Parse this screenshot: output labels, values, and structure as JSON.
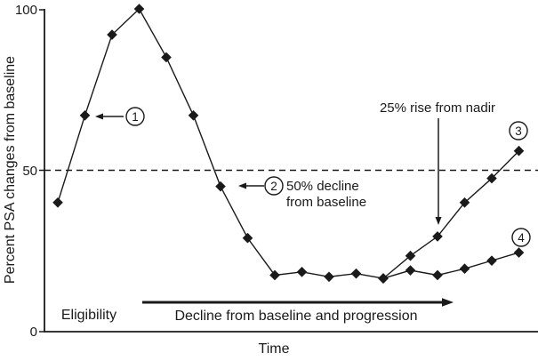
{
  "figure": {
    "background": "#ffffff",
    "ink_color": "#1a1a1a"
  },
  "chart_data": {
    "type": "line",
    "title": "",
    "xlabel": "Time",
    "ylabel": "Percent PSA changes from baseline",
    "ylim": [
      0,
      100
    ],
    "yticks": [
      0,
      50,
      100
    ],
    "ytick_labels": [
      "0",
      "50",
      "100"
    ],
    "xticks": "none",
    "grid": false,
    "marker_shape": "filled-diamond",
    "series": [
      {
        "name": "psa-response-course",
        "start_index": 0,
        "values": [
          40,
          67,
          92,
          100,
          85,
          67,
          45,
          29,
          17.5,
          18.5,
          17,
          18,
          16.5
        ]
      },
      {
        "name": "progression-branch",
        "start_index": 12,
        "values": [
          16.5,
          23.5,
          29.5,
          40,
          47.5,
          56
        ]
      },
      {
        "name": "stable-branch",
        "start_index": 12,
        "values": [
          16.5,
          19,
          17.5,
          19.5,
          22,
          24.5
        ]
      }
    ],
    "reference_line": {
      "value": 50,
      "style": "dashed"
    },
    "annotations": {
      "marker1": {
        "number": "1",
        "points_to": {
          "index": 1,
          "value": 67
        }
      },
      "marker2": {
        "number": "2",
        "points_to": {
          "index": 6,
          "value": 45
        },
        "lines": [
          "50% decline",
          "from baseline"
        ]
      },
      "nadir_rise": {
        "text": "25% rise from nadir",
        "points_to": {
          "index": 14,
          "value": 29.5
        }
      },
      "marker3": {
        "number": "3",
        "near": {
          "index": 17,
          "value": 56
        }
      },
      "marker4": {
        "number": "4",
        "near": {
          "index": 17,
          "value": 24.5
        }
      },
      "eligibility": {
        "text": "Eligibility"
      },
      "phase_arrow": {
        "text": "Decline from baseline and progression"
      }
    }
  }
}
